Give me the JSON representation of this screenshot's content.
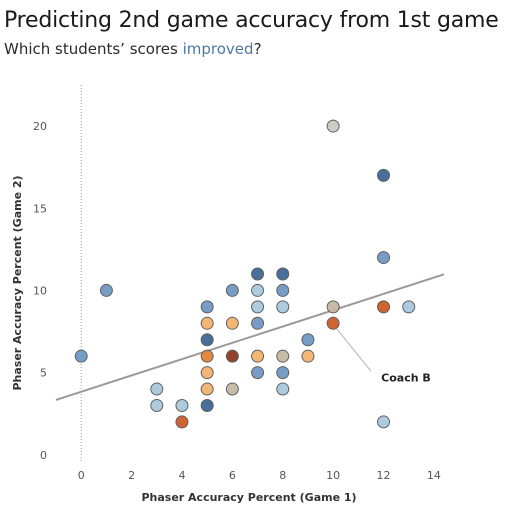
{
  "chart_data": {
    "type": "scatter",
    "title": "Predicting 2nd game accuracy from 1st game",
    "subtitle": {
      "before": "Which students’ scores ",
      "highlight": "improved",
      "after": "?"
    },
    "xlabel": "Phaser Accuracy Percent (Game 1)",
    "ylabel": "Phaser Accuracy Percent (Game 2)",
    "xlim": [
      -1,
      14.4
    ],
    "ylim": [
      -0.5,
      22.5
    ],
    "x_ticks": [
      0,
      2,
      4,
      6,
      8,
      10,
      12,
      14
    ],
    "y_ticks": [
      0,
      5,
      10,
      15,
      20
    ],
    "x_ticks_labels": [
      "0",
      "2",
      "4",
      "6",
      "8",
      "10",
      "12",
      "14"
    ],
    "y_ticks_labels": [
      "0",
      "5",
      "10",
      "15",
      "20"
    ],
    "reference_line_x": 0,
    "trend_line": {
      "x0": -1,
      "y0": 3.34,
      "x1": 14.4,
      "y1": 10.98
    },
    "colors": {
      "light_blue": "#a9c8dc",
      "mid_blue": "#6f98c2",
      "dark_blue": "#3e6796",
      "grey": "#c9c9c4",
      "beige": "#c5b8a3",
      "light_orange": "#f2b26e",
      "orange": "#e08238",
      "dark_orange": "#cc5c28",
      "dark_red": "#8e3a22",
      "trend": "#9a9a9a"
    },
    "points": [
      {
        "x": 0,
        "y": 6,
        "color": "mid_blue"
      },
      {
        "x": 1,
        "y": 10,
        "color": "mid_blue"
      },
      {
        "x": 3,
        "y": 3,
        "color": "light_blue"
      },
      {
        "x": 3,
        "y": 4,
        "color": "light_blue"
      },
      {
        "x": 4,
        "y": 3,
        "color": "light_blue"
      },
      {
        "x": 4,
        "y": 2,
        "color": "dark_orange"
      },
      {
        "x": 5,
        "y": 3,
        "color": "dark_blue"
      },
      {
        "x": 5,
        "y": 4,
        "color": "light_orange"
      },
      {
        "x": 5,
        "y": 5,
        "color": "light_orange"
      },
      {
        "x": 5,
        "y": 6,
        "color": "orange"
      },
      {
        "x": 5,
        "y": 7,
        "color": "dark_blue"
      },
      {
        "x": 5,
        "y": 8,
        "color": "light_orange"
      },
      {
        "x": 5,
        "y": 9,
        "color": "mid_blue"
      },
      {
        "x": 6,
        "y": 4,
        "color": "beige"
      },
      {
        "x": 6,
        "y": 6,
        "color": "dark_red"
      },
      {
        "x": 6,
        "y": 8,
        "color": "light_orange"
      },
      {
        "x": 6,
        "y": 10,
        "color": "mid_blue"
      },
      {
        "x": 7,
        "y": 5,
        "color": "mid_blue"
      },
      {
        "x": 7,
        "y": 6,
        "color": "light_orange"
      },
      {
        "x": 7,
        "y": 8,
        "color": "mid_blue"
      },
      {
        "x": 7,
        "y": 9,
        "color": "light_blue"
      },
      {
        "x": 7,
        "y": 10,
        "color": "light_blue"
      },
      {
        "x": 7,
        "y": 11,
        "color": "dark_blue"
      },
      {
        "x": 8,
        "y": 4,
        "color": "light_blue"
      },
      {
        "x": 8,
        "y": 5,
        "color": "mid_blue"
      },
      {
        "x": 8,
        "y": 6,
        "color": "beige"
      },
      {
        "x": 8,
        "y": 9,
        "color": "light_blue"
      },
      {
        "x": 8,
        "y": 10,
        "color": "mid_blue"
      },
      {
        "x": 8,
        "y": 11,
        "color": "dark_blue"
      },
      {
        "x": 9,
        "y": 6,
        "color": "light_orange"
      },
      {
        "x": 9,
        "y": 7,
        "color": "mid_blue"
      },
      {
        "x": 10,
        "y": 8,
        "color": "dark_orange"
      },
      {
        "x": 10,
        "y": 9,
        "color": "beige"
      },
      {
        "x": 10,
        "y": 20,
        "color": "grey"
      },
      {
        "x": 12,
        "y": 2,
        "color": "light_blue"
      },
      {
        "x": 12,
        "y": 9,
        "color": "dark_orange"
      },
      {
        "x": 12,
        "y": 12,
        "color": "mid_blue"
      },
      {
        "x": 12,
        "y": 17,
        "color": "dark_blue"
      },
      {
        "x": 13,
        "y": 9,
        "color": "light_blue"
      }
    ],
    "annotation": {
      "label": "Coach B",
      "x": 10,
      "y": 8
    }
  }
}
